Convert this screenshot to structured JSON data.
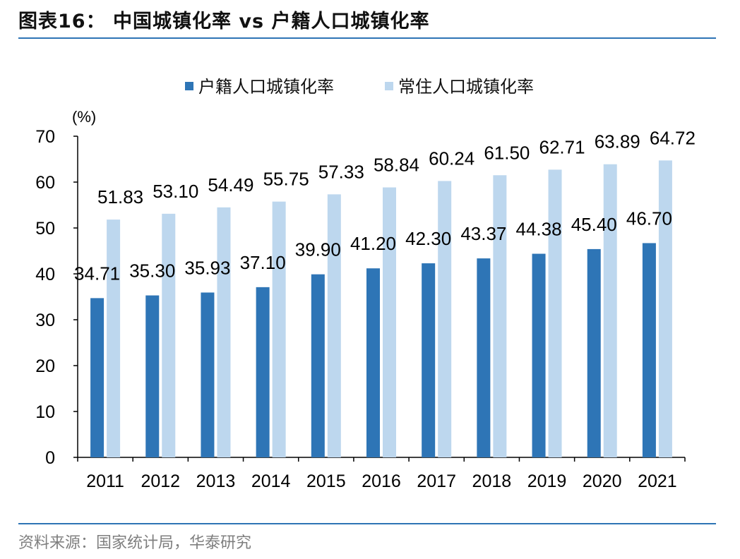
{
  "header": {
    "title": "图表16：  中国城镇化率 vs 户籍人口城镇化率"
  },
  "footer": {
    "source": "资料来源：国家统计局，华泰研究"
  },
  "chart_data": {
    "type": "bar",
    "title": "中国城镇化率 vs 户籍人口城镇化率",
    "ylabel": "(%)",
    "xlabel": "",
    "categories": [
      "2011",
      "2012",
      "2013",
      "2014",
      "2015",
      "2016",
      "2017",
      "2018",
      "2019",
      "2020",
      "2021"
    ],
    "series": [
      {
        "name": "户籍人口城镇化率",
        "color": "#2e75b6",
        "values": [
          34.71,
          35.3,
          35.93,
          37.1,
          39.9,
          41.2,
          42.3,
          43.37,
          44.38,
          45.4,
          46.7
        ]
      },
      {
        "name": "常住人口城镇化率",
        "color": "#bdd7ee",
        "values": [
          51.83,
          53.1,
          54.49,
          55.75,
          57.33,
          58.84,
          60.24,
          61.5,
          62.71,
          63.89,
          64.72
        ]
      }
    ],
    "ylim": [
      0,
      70
    ],
    "yticks": [
      0,
      10,
      20,
      30,
      40,
      50,
      60,
      70
    ],
    "grid": false,
    "legend_position": "top-center"
  }
}
